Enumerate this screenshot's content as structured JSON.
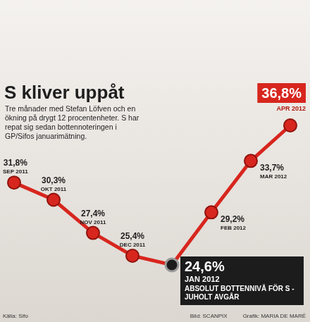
{
  "chart_data": {
    "type": "line",
    "title": "S kliver uppåt",
    "subtitle": "Tre månader med Stefan Löfven och en ökning på drygt 12 procentenheter. S har repat sig sedan bottennoteringen i GP/Sifos januarimätning.",
    "categories": [
      "SEP 2011",
      "OKT 2011",
      "NOV 2011",
      "DEC 2011",
      "JAN 2012",
      "FEB 2012",
      "MAR 2012",
      "APR 2012"
    ],
    "values": [
      31.8,
      30.3,
      27.4,
      25.4,
      24.6,
      29.2,
      33.7,
      36.8
    ],
    "value_labels": [
      "31,8%",
      "30,3%",
      "27,4%",
      "25,4%",
      "24,6%",
      "29,2%",
      "33,7%",
      "36,8%"
    ],
    "color": "#d7261e",
    "data_labels": true,
    "tick_labels": false,
    "grid": false,
    "annotations": [
      {
        "category": "JAN 2012",
        "text": "ABSOLUT BOTTENNIVÅ FÖR S - JUHOLT AVGÅR"
      }
    ],
    "source": "Källa: Sifo",
    "credits": [
      "Bild: SCANPIX",
      "Grafik: MARIA DE MARÉ"
    ]
  }
}
